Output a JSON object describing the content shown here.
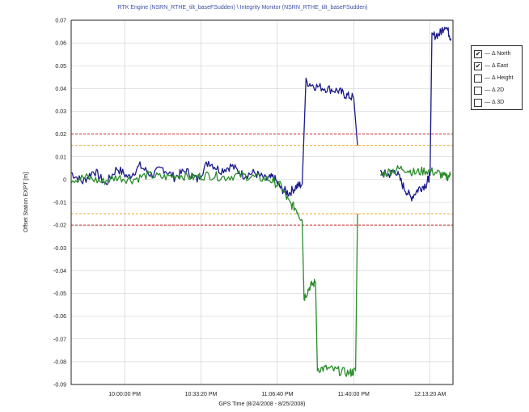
{
  "chart_data": {
    "type": "line",
    "title": "RTK Engine (NSRN_RTHE_tilt_baseFSudden) \\ Integrity Monitor (NSRN_RTHE_tilt_baseFSudden)",
    "ylabel": "Offset Station EXPT [m]",
    "xlabel": "GPS Time (8/24/2008 - 8/25/2008)",
    "ylim": [
      -0.09,
      0.07
    ],
    "yticks": [
      "0.07",
      "0.06",
      "0.05",
      "0.04",
      "0.03",
      "0.02",
      "0.01",
      "0",
      "-0.01",
      "-0.02",
      "-0.03",
      "-0.04",
      "-0.05",
      "-0.06",
      "-0.07",
      "-0.08",
      "-0.09"
    ],
    "xlim": [
      0,
      10000
    ],
    "xticks": [
      {
        "label": "10:00:00 PM",
        "x": 1400
      },
      {
        "label": "10:33:20 PM",
        "x": 3400
      },
      {
        "label": "11:06:40 PM",
        "x": 5400
      },
      {
        "label": "11:40:00 PM",
        "x": 7400
      },
      {
        "label": "12:13:20 AM",
        "x": 9400
      }
    ],
    "grid": true,
    "threshold_lines": [
      {
        "y": 0.02,
        "color": "#cc2a2a"
      },
      {
        "y": -0.02,
        "color": "#cc2a2a"
      },
      {
        "y": 0.015,
        "color": "#f0b040"
      },
      {
        "y": -0.015,
        "color": "#f0b040"
      }
    ],
    "series": [
      {
        "name": "Δ North",
        "color": "#1a1a8c",
        "segments": [
          [
            [
              0,
              0.003
            ],
            [
              300,
              -0.001
            ],
            [
              600,
              0.004
            ],
            [
              900,
              -0.002
            ],
            [
              1200,
              0.005
            ],
            [
              1500,
              0.001
            ],
            [
              1800,
              0.006
            ],
            [
              2100,
              0.002
            ],
            [
              2400,
              0.005
            ],
            [
              2700,
              0.001
            ],
            [
              3000,
              0.004
            ],
            [
              3300,
              0.0
            ],
            [
              3600,
              0.008
            ],
            [
              3900,
              0.004
            ],
            [
              4200,
              0.006
            ],
            [
              4500,
              0.002
            ],
            [
              4800,
              0.003
            ],
            [
              5100,
              0.0
            ],
            [
              5300,
              0.001
            ],
            [
              5500,
              -0.004
            ],
            [
              5700,
              -0.006
            ],
            [
              5900,
              -0.003
            ],
            [
              6050,
              -0.002
            ],
            [
              6150,
              0.043
            ],
            [
              6400,
              0.041
            ],
            [
              6700,
              0.04
            ],
            [
              7000,
              0.039
            ],
            [
              7200,
              0.037
            ],
            [
              7400,
              0.036
            ],
            [
              7500,
              0.015
            ]
          ],
          [
            [
              8100,
              0.003
            ],
            [
              8300,
              0.002
            ],
            [
              8500,
              0.004
            ],
            [
              8700,
              -0.003
            ],
            [
              8900,
              -0.008
            ],
            [
              9100,
              -0.004
            ],
            [
              9300,
              -0.002
            ],
            [
              9400,
              0.002
            ],
            [
              9450,
              0.063
            ],
            [
              9650,
              0.064
            ],
            [
              9800,
              0.068
            ],
            [
              9950,
              0.062
            ]
          ]
        ]
      },
      {
        "name": "Δ East",
        "color": "#2a8c2a",
        "segments": [
          [
            [
              0,
              0.0
            ],
            [
              400,
              0.001
            ],
            [
              800,
              -0.001
            ],
            [
              1200,
              0.001
            ],
            [
              1600,
              0.0
            ],
            [
              2000,
              0.002
            ],
            [
              2400,
              0.001
            ],
            [
              2800,
              0.002
            ],
            [
              3200,
              0.001
            ],
            [
              3600,
              0.002
            ],
            [
              4000,
              0.001
            ],
            [
              4400,
              0.002
            ],
            [
              4800,
              0.001
            ],
            [
              5200,
              0.0
            ],
            [
              5500,
              -0.003
            ],
            [
              5700,
              -0.01
            ],
            [
              5900,
              -0.013
            ],
            [
              6050,
              -0.018
            ],
            [
              6100,
              -0.052
            ],
            [
              6250,
              -0.047
            ],
            [
              6400,
              -0.045
            ],
            [
              6450,
              -0.083
            ],
            [
              6700,
              -0.083
            ],
            [
              7000,
              -0.084
            ],
            [
              7300,
              -0.085
            ],
            [
              7450,
              -0.084
            ],
            [
              7500,
              -0.015
            ]
          ],
          [
            [
              8100,
              0.002
            ],
            [
              8400,
              0.004
            ],
            [
              8700,
              0.005
            ],
            [
              9000,
              0.003
            ],
            [
              9300,
              0.004
            ],
            [
              9600,
              0.003
            ],
            [
              9800,
              0.001
            ],
            [
              9950,
              0.002
            ]
          ]
        ]
      }
    ],
    "legend": {
      "placement": "right",
      "items": [
        {
          "label": "Δ North",
          "checked": true
        },
        {
          "label": "Δ East",
          "checked": true
        },
        {
          "label": "Δ Height",
          "checked": false
        },
        {
          "label": "Δ 2D",
          "checked": false
        },
        {
          "label": "Δ 3D",
          "checked": false
        }
      ]
    },
    "checkmark": "✔",
    "dash": "—"
  }
}
